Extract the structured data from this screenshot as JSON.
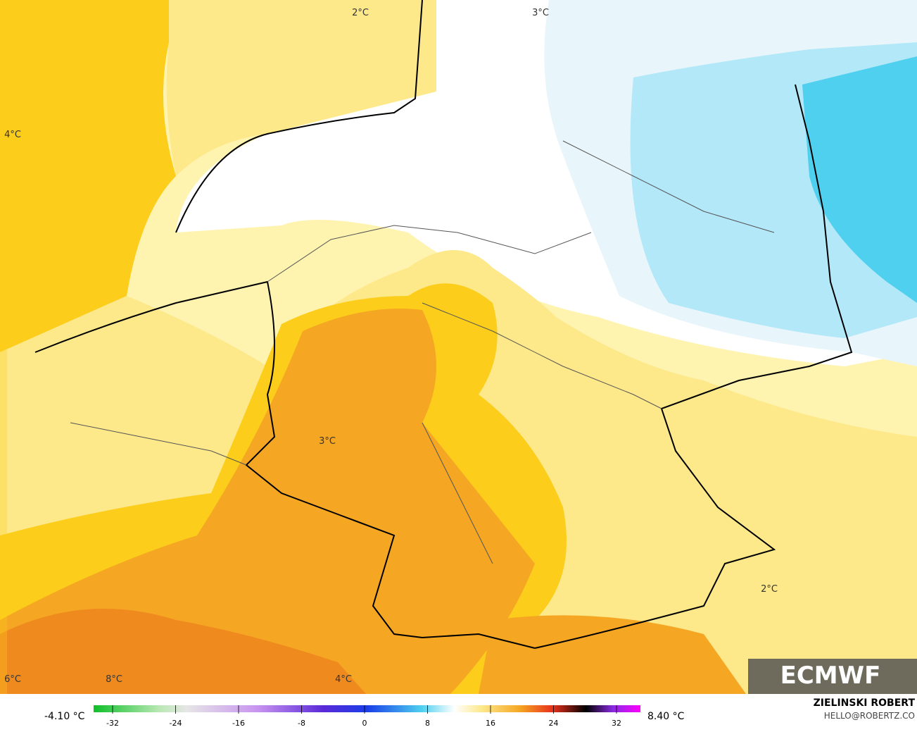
{
  "map": {
    "labels": [
      "2°C",
      "3°C",
      "4°C",
      "3°C",
      "2°C",
      "6°C",
      "8°C",
      "4°C"
    ]
  },
  "colorbar": {
    "min_label": "-4.10 °C",
    "max_label": "8.40 °C",
    "ticks": [
      -32,
      -24,
      -16,
      -8,
      0,
      8,
      16,
      24,
      32
    ]
  },
  "credit": {
    "author": "ZIELINSKI ROBERT",
    "email": "HELLO@ROBERTZ.CO"
  },
  "logo": "ECMWF"
}
